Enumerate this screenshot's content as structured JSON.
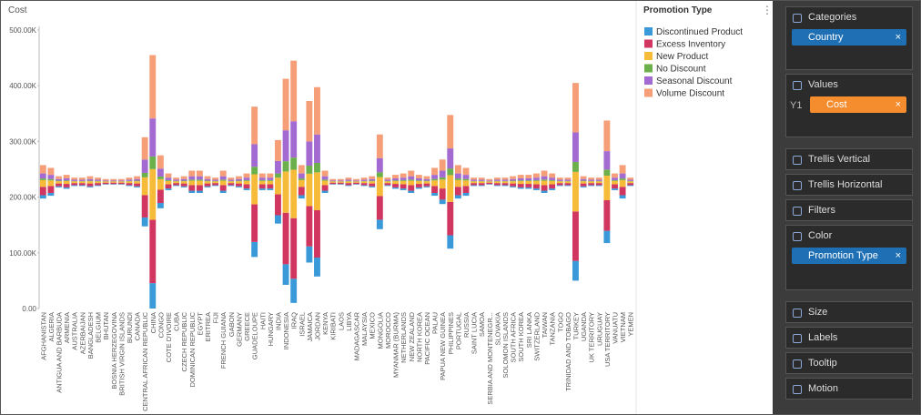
{
  "chart_data": {
    "type": "stream-bar",
    "title": "Cost",
    "legend_title": "Promotion Type",
    "legend": "right",
    "categories": [
      "AFGHANISTAN",
      "ALGERIA",
      "ANTIGUA AND BARBUDA",
      "ARMENIA",
      "AUSTRALIA",
      "AZERBAIJAN",
      "BANGLADESH",
      "BELGIUM",
      "BHUTAN",
      "BOSNIA HERZEGOVINA",
      "BRITISH VIRGIN ISLANDS",
      "BURUNDI",
      "CANADA",
      "CENTRAL AFRICAN REPUBLIC",
      "CHINA",
      "CONGO",
      "COTE D'IVOIRE",
      "CUBA",
      "CZECH REPUBLIC",
      "DOMINICAN REPUBLIC",
      "EGYPT",
      "ERITREA",
      "FIJI",
      "FRENCH GUIANA",
      "GABON",
      "GERMANY",
      "GREECE",
      "GUADELOUPE",
      "HAITI",
      "HUNGARY",
      "INDIA",
      "INDONESIA",
      "IRAQ",
      "ISRAEL",
      "JAMAICA",
      "JORDAN",
      "KENYA",
      "KIRIBATI",
      "LAOS",
      "LIBYA",
      "MADAGASCAR",
      "MALAYSIA",
      "MEXICO",
      "MONGOLIA",
      "MOROCCO",
      "MYANMAR (BURMA)",
      "NETHERLANDS",
      "NEW ZEALAND",
      "NORTH KOREA",
      "PACIFIC OCEAN",
      "PALAU",
      "PAPUA NEW GUINEA",
      "PHILIPPINES",
      "PORTUGAL",
      "RUSSIA",
      "SAINT LUCIA",
      "SAMOA",
      "SERBIA AND MONTENEGR...",
      "SLOVAKIA",
      "SOLOMON ISLANDS",
      "SOUTH AFRICA",
      "SOUTH KOREA",
      "SRI LANKA",
      "SWITZERLAND",
      "TAIWAN",
      "TANZANIA",
      "TOGO",
      "TRINIDAD AND TOBAGO",
      "TURKEY",
      "UGANDA",
      "UK TERRITORY",
      "URUGUAY",
      "USA TERRITORY",
      "VANUATU",
      "VIETNAM",
      "YEMEN"
    ],
    "series": [
      {
        "name": "Discontinued Product",
        "color": "#3a9ad9",
        "values": [
          6000,
          5000,
          2000,
          2500,
          1500,
          1500,
          2000,
          1500,
          1000,
          1000,
          1000,
          1500,
          2000,
          16000,
          45500,
          9500,
          3000,
          1500,
          2000,
          4000,
          4000,
          2000,
          1500,
          4000,
          1500,
          2000,
          3000,
          27000,
          3000,
          3000,
          15000,
          37000,
          43500,
          6000,
          29000,
          34000,
          4000,
          1000,
          1000,
          1500,
          1000,
          1500,
          2000,
          17000,
          1500,
          2500,
          3000,
          4000,
          2500,
          2000,
          5000,
          8000,
          24000,
          6000,
          5000,
          1500,
          1500,
          1000,
          1500,
          1500,
          2000,
          2500,
          2500,
          3000,
          4000,
          3000,
          1500,
          1500,
          35500,
          2000,
          1500,
          1500,
          22000,
          3000,
          6000,
          1500
        ]
      },
      {
        "name": "Excess Inventory",
        "color": "#d0365f",
        "values": [
          15000,
          12500,
          5000,
          6250,
          3750,
          3750,
          5000,
          3750,
          2500,
          2500,
          2500,
          3750,
          5000,
          40000,
          113750,
          23750,
          7500,
          3750,
          5000,
          10000,
          10000,
          5000,
          3750,
          10000,
          3750,
          5000,
          7500,
          67500,
          7500,
          7500,
          37500,
          92500,
          108750,
          15000,
          72500,
          85000,
          10000,
          2500,
          2500,
          3750,
          2500,
          3750,
          5000,
          42500,
          3750,
          6250,
          7500,
          10000,
          6250,
          5000,
          12500,
          20000,
          60000,
          15000,
          12500,
          3750,
          3750,
          2500,
          3750,
          3750,
          5000,
          6250,
          6250,
          7500,
          10000,
          7500,
          3750,
          3750,
          88750,
          5000,
          3750,
          3750,
          55000,
          7500,
          15000,
          3750
        ]
      },
      {
        "name": "New Product",
        "color": "#f7bb3a",
        "values": [
          12000,
          10000,
          4000,
          5000,
          3000,
          3000,
          4000,
          3000,
          2000,
          2000,
          2000,
          3000,
          4000,
          32000,
          91000,
          19000,
          6000,
          3000,
          4000,
          8000,
          8000,
          4000,
          3000,
          8000,
          3000,
          4000,
          6000,
          54000,
          6000,
          6000,
          30000,
          74000,
          87000,
          12000,
          58000,
          68000,
          8000,
          2000,
          2000,
          3000,
          2000,
          3000,
          4000,
          34000,
          3000,
          5000,
          6000,
          8000,
          5000,
          4000,
          10000,
          16000,
          48000,
          12000,
          10000,
          3000,
          3000,
          2000,
          3000,
          3000,
          4000,
          5000,
          5000,
          6000,
          8000,
          6000,
          3000,
          3000,
          71000,
          4000,
          3000,
          3000,
          44000,
          6000,
          12000,
          3000
        ]
      },
      {
        "name": "No Discount",
        "color": "#6cb04c",
        "values": [
          3000,
          2500,
          1000,
          1250,
          750,
          750,
          1000,
          750,
          500,
          500,
          500,
          750,
          1000,
          8000,
          22750,
          4750,
          1500,
          750,
          1000,
          2000,
          2000,
          1000,
          750,
          2000,
          750,
          1000,
          1500,
          13500,
          1500,
          1500,
          7500,
          18500,
          21750,
          3000,
          14500,
          17000,
          2000,
          500,
          500,
          750,
          500,
          750,
          1000,
          8500,
          750,
          1250,
          1500,
          2000,
          1250,
          1000,
          2500,
          4000,
          12000,
          3000,
          2500,
          750,
          750,
          500,
          750,
          750,
          1000,
          1250,
          1250,
          1500,
          2000,
          1500,
          750,
          750,
          17750,
          1000,
          750,
          750,
          11000,
          1500,
          3000,
          750
        ]
      },
      {
        "name": "Seasonal Discount",
        "color": "#a36bd1",
        "values": [
          9000,
          7500,
          3000,
          3750,
          2250,
          2250,
          3000,
          2250,
          1500,
          1500,
          1500,
          2250,
          3000,
          24000,
          68250,
          14250,
          4500,
          2250,
          3000,
          6000,
          6000,
          3000,
          2250,
          6000,
          2250,
          3000,
          4500,
          40500,
          4500,
          4500,
          22500,
          55500,
          65250,
          9000,
          43500,
          51000,
          6000,
          1500,
          1500,
          2250,
          1500,
          2250,
          3000,
          25500,
          2250,
          3750,
          4500,
          6000,
          3750,
          3000,
          7500,
          12000,
          36000,
          9000,
          7500,
          2250,
          2250,
          1500,
          2250,
          2250,
          3000,
          3750,
          3750,
          4500,
          6000,
          4500,
          2250,
          2250,
          53250,
          3000,
          2250,
          2250,
          33000,
          4500,
          9000,
          2250
        ]
      },
      {
        "name": "Volume Discount",
        "color": "#f59e77",
        "values": [
          15000,
          12500,
          5000,
          6250,
          3750,
          3750,
          5000,
          3750,
          2500,
          2500,
          2500,
          3750,
          5000,
          40000,
          113750,
          23750,
          7500,
          3750,
          5000,
          10000,
          10000,
          5000,
          3750,
          10000,
          3750,
          5000,
          7500,
          67500,
          7500,
          7500,
          37500,
          92500,
          108750,
          15000,
          72500,
          85000,
          10000,
          2500,
          2500,
          3750,
          2500,
          3750,
          5000,
          42500,
          3750,
          6250,
          7500,
          10000,
          6250,
          5000,
          12500,
          20000,
          60000,
          15000,
          12500,
          3750,
          3750,
          2500,
          3750,
          3750,
          5000,
          6250,
          6250,
          7500,
          10000,
          7500,
          3750,
          3750,
          88750,
          5000,
          3750,
          3750,
          55000,
          7500,
          15000,
          3750
        ]
      }
    ],
    "ylim": [
      0,
      500000
    ],
    "yticks": [
      {
        "value": 0,
        "label": "0.00"
      },
      {
        "value": 100000,
        "label": "100.00K"
      },
      {
        "value": 200000,
        "label": "200.00K"
      },
      {
        "value": 300000,
        "label": "300.00K"
      },
      {
        "value": 400000,
        "label": "400.00K"
      },
      {
        "value": 500000,
        "label": "500.00K"
      }
    ]
  },
  "panel": {
    "sections": [
      {
        "title": "Categories",
        "chip": "Country"
      },
      {
        "title": "Values",
        "axis": "Y1",
        "chip": "Cost"
      },
      {
        "title": "Trellis Vertical"
      },
      {
        "title": "Trellis Horizontal"
      },
      {
        "title": "Filters"
      },
      {
        "title": "Color",
        "chip": "Promotion Type"
      },
      {
        "title": "Size"
      },
      {
        "title": "Labels"
      },
      {
        "title": "Tooltip"
      },
      {
        "title": "Motion"
      }
    ]
  }
}
